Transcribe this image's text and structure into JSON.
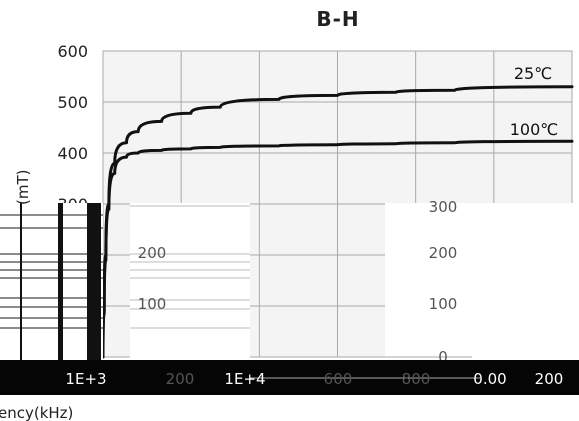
{
  "chart_data": {
    "type": "line",
    "title": "B-H",
    "ylabel": "(mT)",
    "xlabel": "ency(kHz)",
    "ylim": [
      0,
      600
    ],
    "yticks": [
      "600",
      "500",
      "400",
      "300"
    ],
    "xticks": [
      "1E+3",
      "200",
      "1E+4",
      "600",
      "800",
      "0.00",
      "200"
    ],
    "grid": true,
    "series": [
      {
        "name": "25℃",
        "x": [
          0,
          2,
          5,
          10,
          20,
          40,
          60,
          100,
          150,
          200,
          300,
          400,
          500,
          600,
          800
        ],
        "values": [
          0,
          90,
          200,
          300,
          380,
          420,
          442,
          462,
          478,
          490,
          505,
          513,
          519,
          523,
          530
        ]
      },
      {
        "name": "100℃",
        "x": [
          0,
          2,
          5,
          10,
          20,
          40,
          60,
          100,
          150,
          200,
          300,
          400,
          500,
          600,
          800
        ],
        "values": [
          0,
          85,
          190,
          290,
          360,
          392,
          400,
          405,
          408,
          411,
          414,
          416,
          418,
          420,
          423
        ]
      }
    ]
  },
  "glitch_labels": {
    "left_ticks": [
      "200",
      "100"
    ],
    "right_ticks": [
      "300",
      "200",
      "100",
      "0"
    ]
  }
}
